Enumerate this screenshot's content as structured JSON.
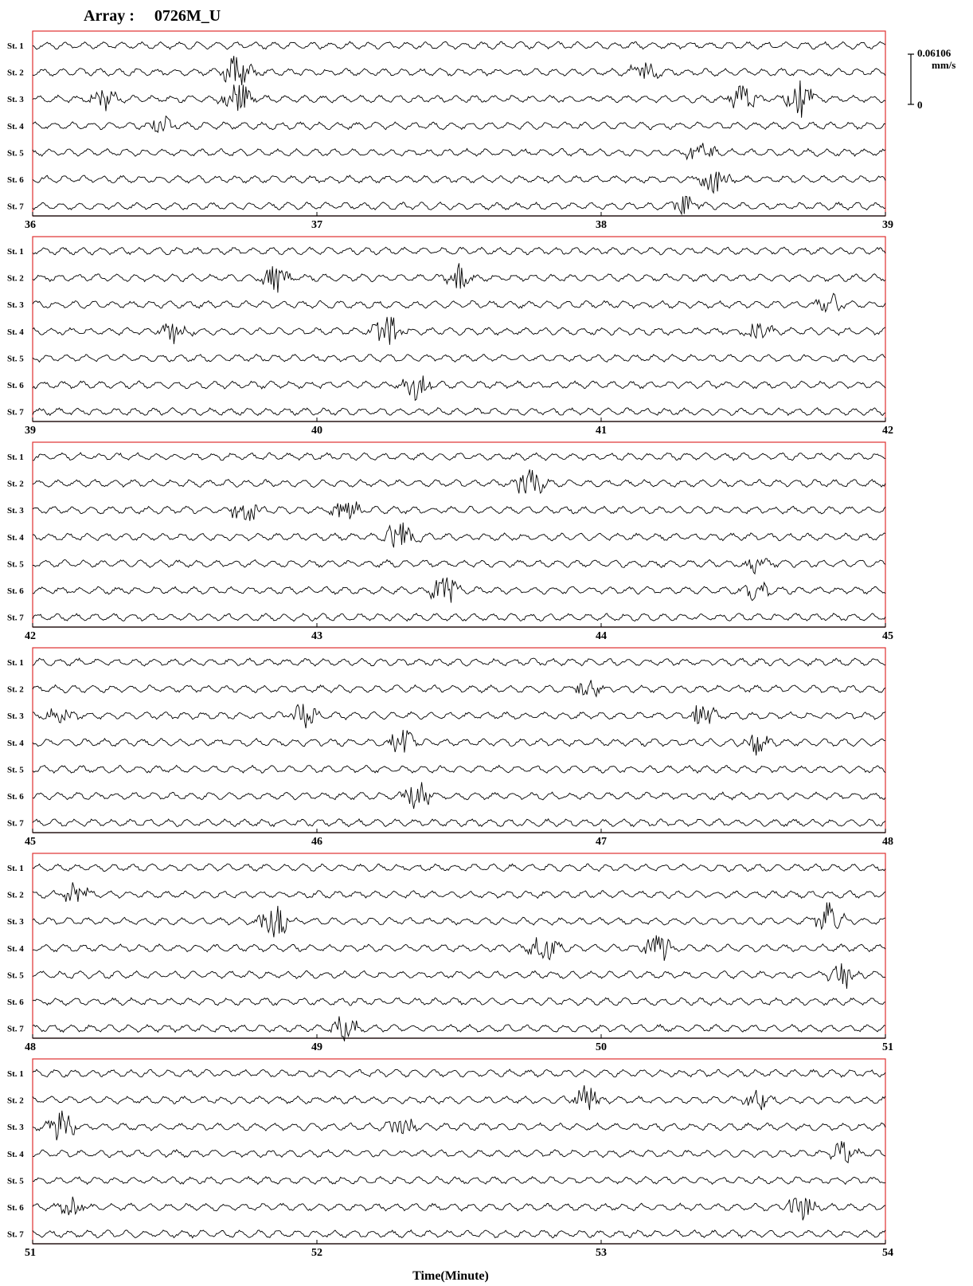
{
  "chart_data": {
    "type": "line",
    "title": "Array :     0726M_U",
    "xlabel": "Time(Minute)",
    "scale": {
      "top_value": "0.06106",
      "unit": "mm/s",
      "bottom_value": "0"
    },
    "stations": [
      "St. 1",
      "St. 2",
      "St. 3",
      "St. 4",
      "St. 5",
      "St. 6",
      "St. 7"
    ],
    "panels": [
      {
        "start": 36,
        "end": 39,
        "ticks": [
          "36",
          "37",
          "38",
          "39"
        ]
      },
      {
        "start": 39,
        "end": 42,
        "ticks": [
          "39",
          "40",
          "41",
          "42"
        ]
      },
      {
        "start": 42,
        "end": 45,
        "ticks": [
          "42",
          "43",
          "44",
          "45"
        ]
      },
      {
        "start": 45,
        "end": 48,
        "ticks": [
          "45",
          "46",
          "47",
          "48"
        ]
      },
      {
        "start": 48,
        "end": 51,
        "ticks": [
          "48",
          "49",
          "50",
          "51"
        ]
      },
      {
        "start": 51,
        "end": 54,
        "ticks": [
          "51",
          "52",
          "53",
          "54"
        ]
      }
    ],
    "bursts": [
      {
        "panel": 0,
        "station": 3,
        "t": 36.25,
        "amp": 14
      },
      {
        "panel": 0,
        "station": 3,
        "t": 36.72,
        "amp": 24
      },
      {
        "panel": 0,
        "station": 2,
        "t": 36.72,
        "amp": 22
      },
      {
        "panel": 0,
        "station": 4,
        "t": 36.45,
        "amp": 10
      },
      {
        "panel": 0,
        "station": 2,
        "t": 38.15,
        "amp": 12
      },
      {
        "panel": 0,
        "station": 3,
        "t": 38.5,
        "amp": 20
      },
      {
        "panel": 0,
        "station": 3,
        "t": 38.7,
        "amp": 24
      },
      {
        "panel": 0,
        "station": 5,
        "t": 38.35,
        "amp": 18
      },
      {
        "panel": 0,
        "station": 6,
        "t": 38.4,
        "amp": 22
      },
      {
        "panel": 0,
        "station": 7,
        "t": 38.3,
        "amp": 16
      },
      {
        "panel": 1,
        "station": 2,
        "t": 39.85,
        "amp": 16
      },
      {
        "panel": 1,
        "station": 4,
        "t": 39.5,
        "amp": 14
      },
      {
        "panel": 1,
        "station": 4,
        "t": 40.25,
        "amp": 20
      },
      {
        "panel": 1,
        "station": 6,
        "t": 40.35,
        "amp": 18
      },
      {
        "panel": 1,
        "station": 2,
        "t": 40.5,
        "amp": 16
      },
      {
        "panel": 1,
        "station": 4,
        "t": 41.55,
        "amp": 12
      },
      {
        "panel": 1,
        "station": 3,
        "t": 41.8,
        "amp": 14
      },
      {
        "panel": 2,
        "station": 3,
        "t": 42.75,
        "amp": 16
      },
      {
        "panel": 2,
        "station": 3,
        "t": 43.1,
        "amp": 18
      },
      {
        "panel": 2,
        "station": 4,
        "t": 43.3,
        "amp": 26
      },
      {
        "panel": 2,
        "station": 6,
        "t": 43.45,
        "amp": 22
      },
      {
        "panel": 2,
        "station": 2,
        "t": 43.75,
        "amp": 20
      },
      {
        "panel": 2,
        "station": 5,
        "t": 44.55,
        "amp": 12
      },
      {
        "panel": 2,
        "station": 6,
        "t": 44.55,
        "amp": 12
      },
      {
        "panel": 3,
        "station": 3,
        "t": 45.1,
        "amp": 14
      },
      {
        "panel": 3,
        "station": 3,
        "t": 45.95,
        "amp": 16
      },
      {
        "panel": 3,
        "station": 4,
        "t": 46.3,
        "amp": 20
      },
      {
        "panel": 3,
        "station": 6,
        "t": 46.35,
        "amp": 18
      },
      {
        "panel": 3,
        "station": 2,
        "t": 46.95,
        "amp": 14
      },
      {
        "panel": 3,
        "station": 3,
        "t": 47.35,
        "amp": 16
      },
      {
        "panel": 3,
        "station": 4,
        "t": 47.55,
        "amp": 14
      },
      {
        "panel": 4,
        "station": 2,
        "t": 48.15,
        "amp": 16
      },
      {
        "panel": 4,
        "station": 3,
        "t": 48.85,
        "amp": 22
      },
      {
        "panel": 4,
        "station": 7,
        "t": 49.1,
        "amp": 16
      },
      {
        "panel": 4,
        "station": 4,
        "t": 49.8,
        "amp": 20
      },
      {
        "panel": 4,
        "station": 4,
        "t": 50.2,
        "amp": 18
      },
      {
        "panel": 4,
        "station": 3,
        "t": 50.8,
        "amp": 24
      },
      {
        "panel": 4,
        "station": 5,
        "t": 50.85,
        "amp": 16
      },
      {
        "panel": 5,
        "station": 3,
        "t": 51.1,
        "amp": 22
      },
      {
        "panel": 5,
        "station": 6,
        "t": 51.15,
        "amp": 16
      },
      {
        "panel": 5,
        "station": 3,
        "t": 52.3,
        "amp": 14
      },
      {
        "panel": 5,
        "station": 2,
        "t": 52.95,
        "amp": 20
      },
      {
        "panel": 5,
        "station": 2,
        "t": 53.55,
        "amp": 12
      },
      {
        "panel": 5,
        "station": 6,
        "t": 53.7,
        "amp": 16
      },
      {
        "panel": 5,
        "station": 4,
        "t": 53.85,
        "amp": 14
      }
    ]
  }
}
